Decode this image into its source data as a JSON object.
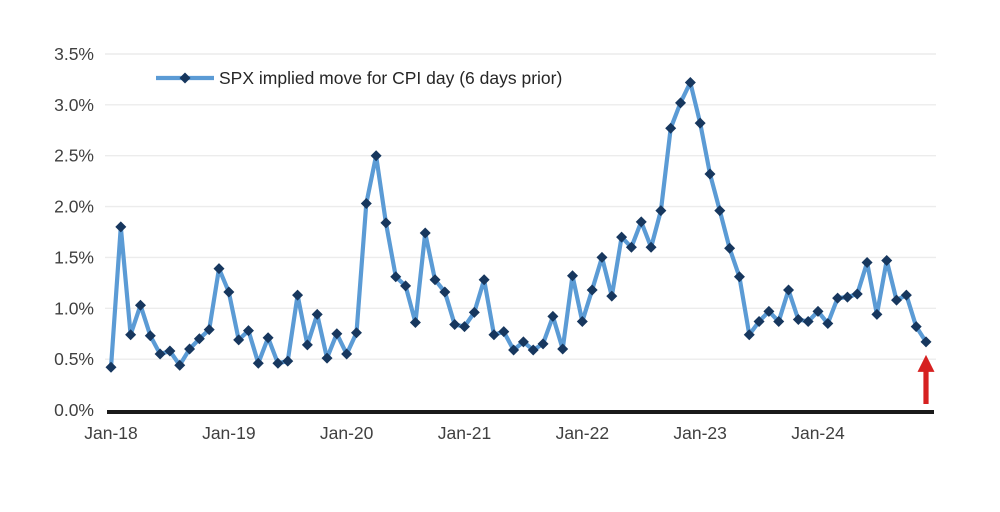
{
  "chart_data": {
    "type": "line",
    "title": "",
    "xlabel": "",
    "ylabel": "",
    "legend": "SPX implied move for CPI day (6 days prior)",
    "legend_position": "top-left-inside",
    "grid": "horizontal-light",
    "frequency": "monthly",
    "x_range": {
      "start": "Jan-18",
      "end": "Dec-24"
    },
    "ylim": [
      0.0,
      3.5
    ],
    "y_tick_step": 0.5,
    "y_ticks": [
      "0.0%",
      "0.5%",
      "1.0%",
      "1.5%",
      "2.0%",
      "2.5%",
      "3.0%",
      "3.5%"
    ],
    "x_ticks": [
      "Jan-18",
      "Jan-19",
      "Jan-20",
      "Jan-21",
      "Jan-22",
      "Jan-23",
      "Jan-24"
    ],
    "x_tick_month_indices": [
      0,
      12,
      24,
      36,
      48,
      60,
      72
    ],
    "series": [
      {
        "name": "SPX implied move for CPI day (6 days prior)",
        "marker": "diamond",
        "values": [
          0.42,
          1.8,
          0.74,
          1.03,
          0.73,
          0.55,
          0.58,
          0.44,
          0.6,
          0.7,
          0.79,
          1.39,
          1.16,
          0.69,
          0.78,
          0.46,
          0.71,
          0.46,
          0.48,
          1.13,
          0.64,
          0.94,
          0.51,
          0.75,
          0.55,
          0.76,
          2.03,
          2.5,
          1.84,
          1.31,
          1.22,
          0.86,
          1.74,
          1.28,
          1.16,
          0.84,
          0.82,
          0.96,
          1.28,
          0.74,
          0.77,
          0.59,
          0.67,
          0.59,
          0.65,
          0.92,
          0.6,
          1.32,
          0.87,
          1.18,
          1.5,
          1.12,
          1.7,
          1.6,
          1.85,
          1.6,
          1.96,
          2.77,
          3.02,
          3.22,
          2.82,
          2.32,
          1.96,
          1.59,
          1.31,
          0.74,
          0.87,
          0.97,
          0.87,
          1.18,
          0.89,
          0.87,
          0.97,
          0.85,
          1.1,
          1.11,
          1.14,
          1.45,
          0.94,
          1.47,
          1.08,
          1.13,
          0.82,
          0.67
        ]
      }
    ],
    "annotation": {
      "shape": "up-arrow",
      "target": "last-point",
      "color": "#D62121"
    },
    "colors": {
      "line": "#5B9BD5",
      "marker": "#17375E",
      "grid": "#ECECEC",
      "axis": "#1A1A1A",
      "tick_text": "#404040",
      "legend_text": "#262626",
      "background": "#FFFFFF"
    }
  }
}
